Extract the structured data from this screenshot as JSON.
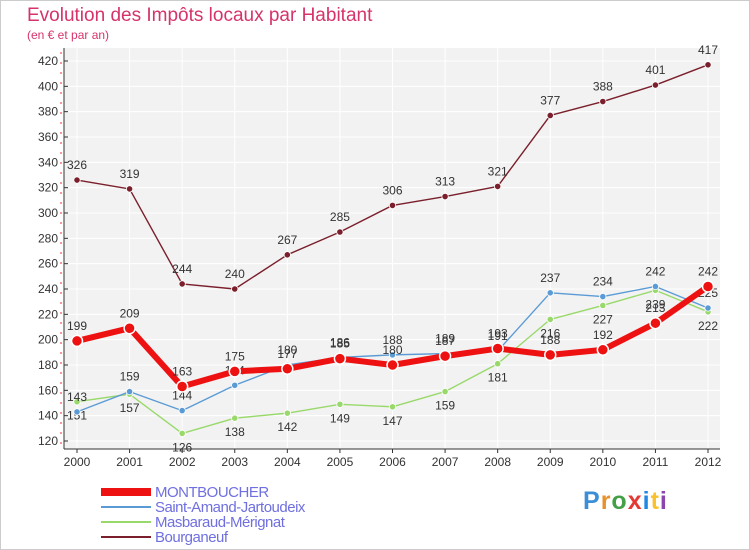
{
  "header": {
    "title": "Evolution des Impôts locaux par Habitant",
    "subtitle": "(en € et par an)"
  },
  "logo": {
    "letters": [
      "P",
      "r",
      "o",
      "x",
      "i",
      "t",
      "i"
    ],
    "colors": [
      "#3b8fd6",
      "#e8912c",
      "#43a047",
      "#e53935",
      "#1e88e5",
      "#fbc02d",
      "#8e44ad"
    ]
  },
  "chart_data": {
    "type": "line",
    "x": [
      2000,
      2001,
      2002,
      2003,
      2004,
      2005,
      2006,
      2007,
      2008,
      2009,
      2010,
      2011,
      2012
    ],
    "ylim": [
      120,
      420
    ],
    "yticks": [
      120,
      140,
      160,
      180,
      200,
      220,
      240,
      260,
      280,
      300,
      320,
      340,
      360,
      380,
      400,
      420
    ],
    "grid": true,
    "legend_position": "bottom-left",
    "series": [
      {
        "name": "Bourganeuf",
        "color": "#7a1f2b",
        "values": [
          326,
          319,
          244,
          240,
          267,
          285,
          306,
          313,
          321,
          377,
          388,
          401,
          417
        ],
        "labels": [
          "326",
          "319",
          "244",
          "240",
          "267",
          "285",
          "306",
          "313",
          "321",
          "377",
          "388",
          "401",
          "417"
        ]
      },
      {
        "name": "Masbaraud-Mérignat",
        "color": "#99d96b",
        "values": [
          151,
          157,
          126,
          138,
          142,
          149,
          147,
          159,
          181,
          216,
          227,
          239,
          222
        ],
        "labels": [
          "151",
          "157",
          "126",
          "138",
          "142",
          "149",
          "147",
          "159",
          "181",
          "216",
          "227",
          "239",
          "222"
        ]
      },
      {
        "name": "Saint-Amand-Jartoudeix",
        "color": "#5b9bd5",
        "values": [
          143,
          159,
          144,
          164,
          180,
          186,
          188,
          189,
          191,
          237,
          234,
          242,
          225
        ],
        "labels": [
          "143",
          "159",
          "144",
          "164",
          "180",
          "186",
          "188",
          "189",
          "191",
          "237",
          "234",
          "242",
          "225"
        ]
      },
      {
        "name": "MONTBOUCHER",
        "color": "#ee1111",
        "values": [
          199,
          209,
          163,
          175,
          177,
          185,
          180,
          187,
          193,
          188,
          192,
          213,
          242
        ],
        "labels": [
          "199",
          "209",
          "163",
          "175",
          "177",
          "185",
          "180",
          "187",
          "193",
          "188",
          "192",
          "213",
          "242"
        ]
      }
    ],
    "legend": [
      "MONTBOUCHER",
      "Saint-Amand-Jartoudeix",
      "Masbaraud-Mérignat",
      "Bourganeuf"
    ]
  }
}
